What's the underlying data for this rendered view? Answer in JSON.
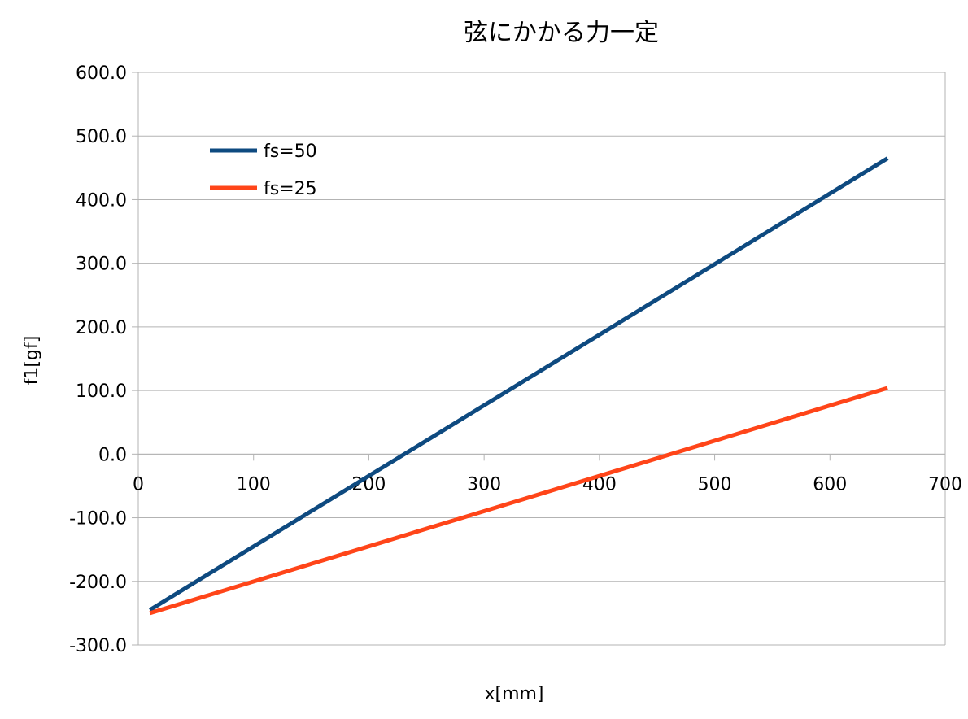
{
  "chart_data": {
    "type": "line",
    "title": "弦にかかる力一定",
    "xlabel": "x[mm]",
    "ylabel": "f1[gf]",
    "xlim": [
      0,
      700
    ],
    "ylim": [
      -300,
      600
    ],
    "xticks": [
      0,
      100,
      200,
      300,
      400,
      500,
      600,
      700
    ],
    "yticks": [
      -300,
      -200,
      -100,
      0,
      100,
      200,
      300,
      400,
      500,
      600
    ],
    "xtick_labels": [
      "0",
      "100",
      "200",
      "300",
      "400",
      "500",
      "600",
      "700"
    ],
    "ytick_labels": [
      "-300.0",
      "-200.0",
      "-100.0",
      "0.0",
      "100.0",
      "200.0",
      "300.0",
      "400.0",
      "500.0",
      "600.0"
    ],
    "grid": "horizontal",
    "legend_position": "top-left",
    "series": [
      {
        "name": "fs=50",
        "color": "#0e4a80",
        "x": [
          10,
          650
        ],
        "y": [
          -245,
          465
        ]
      },
      {
        "name": "fs=25",
        "color": "#ff4519",
        "x": [
          10,
          650
        ],
        "y": [
          -250,
          104
        ]
      }
    ]
  }
}
